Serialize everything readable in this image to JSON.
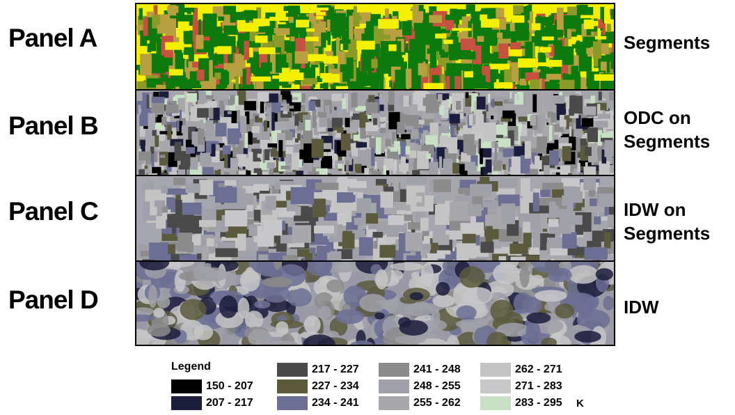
{
  "panels": [
    {
      "label": "Panel A",
      "description_label": "Segments"
    },
    {
      "label": "Panel B",
      "description_label": "ODC on Segments"
    },
    {
      "label": "Panel C",
      "description_label": "IDW on Segments"
    },
    {
      "label": "Panel D",
      "description_label": "IDW"
    }
  ],
  "side_labels": {
    "a": "Segments",
    "b_line1": "ODC on",
    "b_line2": "Segments",
    "c_line1": "IDW on",
    "c_line2": "Segments",
    "d": "IDW"
  },
  "legend": {
    "title": "Legend",
    "unit": "K",
    "classes": [
      {
        "range": "150 - 207",
        "color": "#000000"
      },
      {
        "range": "207 - 217",
        "color": "#1c1c3c"
      },
      {
        "range": "217 - 227",
        "color": "#4a4a4a"
      },
      {
        "range": "227 - 234",
        "color": "#5c5a3c"
      },
      {
        "range": "234 - 241",
        "color": "#6c6e94"
      },
      {
        "range": "241 - 248",
        "color": "#8c8c8c"
      },
      {
        "range": "248 - 255",
        "color": "#a0a0a8"
      },
      {
        "range": "255 - 262",
        "color": "#a8a8ac"
      },
      {
        "range": "262 - 271",
        "color": "#c4c4c4"
      },
      {
        "range": "271 - 283",
        "color": "#c8c8ca"
      },
      {
        "range": "283 - 295",
        "color": "#c8e0c4"
      }
    ]
  },
  "segment_colors": {
    "crop_yellow": "#f4f000",
    "forest_green": "#0c7a0c",
    "bare_tan": "#b8a040",
    "urban_red": "#c85040",
    "olive": "#8c9a28"
  }
}
